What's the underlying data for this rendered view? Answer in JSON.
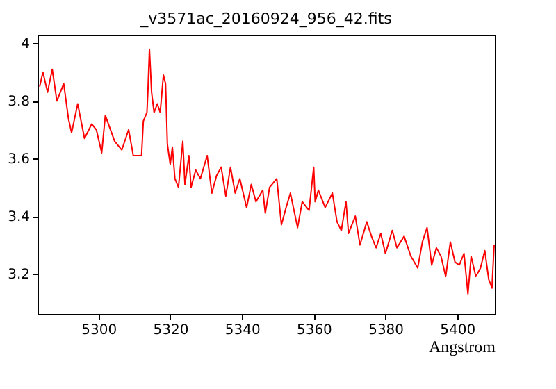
{
  "chart_data": {
    "type": "line",
    "title": "_v3571ac_20160924_956_42.fits",
    "xlabel": "Angstrom",
    "xlim": [
      5283,
      5410.5
    ],
    "xticks": [
      5300,
      5320,
      5340,
      5360,
      5380,
      5400
    ],
    "ylim": [
      3.06,
      4.03
    ],
    "yticks": [
      3.2,
      3.4,
      3.6,
      3.8,
      4
    ],
    "grid": false,
    "marker": "none",
    "line_style": "solid",
    "series": [
      {
        "color": "#ff0000",
        "x": [
          5283.6,
          5284.5,
          5285.8,
          5287.1,
          5288.4,
          5290.3,
          5291.6,
          5292.5,
          5294.2,
          5296.1,
          5298.1,
          5299.4,
          5300.9,
          5301.9,
          5304.5,
          5306.5,
          5308.4,
          5309.7,
          5312.0,
          5312.5,
          5313.5,
          5313.8,
          5314.2,
          5314.8,
          5315.5,
          5316.4,
          5317.2,
          5318.1,
          5318.7,
          5319.2,
          5320.0,
          5320.6,
          5321.3,
          5322.3,
          5323.5,
          5324.1,
          5325.2,
          5325.8,
          5327.1,
          5328.4,
          5330.3,
          5331.6,
          5332.9,
          5334.2,
          5335.5,
          5336.8,
          5338.1,
          5339.4,
          5341.3,
          5342.6,
          5343.9,
          5345.8,
          5346.5,
          5347.7,
          5349.7,
          5351.0,
          5352.3,
          5353.5,
          5355.5,
          5356.8,
          5358.7,
          5360.0,
          5360.4,
          5361.3,
          5363.2,
          5365.2,
          5366.5,
          5367.7,
          5369.0,
          5369.7,
          5371.6,
          5372.9,
          5374.8,
          5376.1,
          5377.4,
          5378.7,
          5380.0,
          5381.9,
          5383.2,
          5385.2,
          5387.1,
          5389.0,
          5390.3,
          5391.6,
          5392.9,
          5394.2,
          5395.5,
          5396.8,
          5398.1,
          5399.4,
          5400.6,
          5401.9,
          5403.0,
          5403.9,
          5405.2,
          5406.5,
          5407.7,
          5408.8,
          5409.7,
          5410.3
        ],
        "values": [
          3.85,
          3.9,
          3.83,
          3.91,
          3.8,
          3.86,
          3.74,
          3.69,
          3.79,
          3.67,
          3.72,
          3.7,
          3.62,
          3.75,
          3.66,
          3.63,
          3.7,
          3.61,
          3.61,
          3.73,
          3.76,
          3.84,
          3.98,
          3.83,
          3.76,
          3.79,
          3.76,
          3.89,
          3.86,
          3.65,
          3.58,
          3.64,
          3.53,
          3.5,
          3.66,
          3.51,
          3.61,
          3.5,
          3.56,
          3.53,
          3.61,
          3.48,
          3.54,
          3.57,
          3.47,
          3.57,
          3.48,
          3.53,
          3.43,
          3.51,
          3.45,
          3.49,
          3.41,
          3.5,
          3.53,
          3.37,
          3.43,
          3.48,
          3.36,
          3.45,
          3.42,
          3.57,
          3.45,
          3.49,
          3.43,
          3.48,
          3.38,
          3.35,
          3.45,
          3.34,
          3.4,
          3.3,
          3.38,
          3.33,
          3.29,
          3.34,
          3.27,
          3.35,
          3.29,
          3.33,
          3.26,
          3.22,
          3.31,
          3.36,
          3.23,
          3.29,
          3.26,
          3.19,
          3.31,
          3.24,
          3.23,
          3.27,
          3.13,
          3.26,
          3.19,
          3.22,
          3.28,
          3.18,
          3.15,
          3.3
        ]
      }
    ]
  }
}
